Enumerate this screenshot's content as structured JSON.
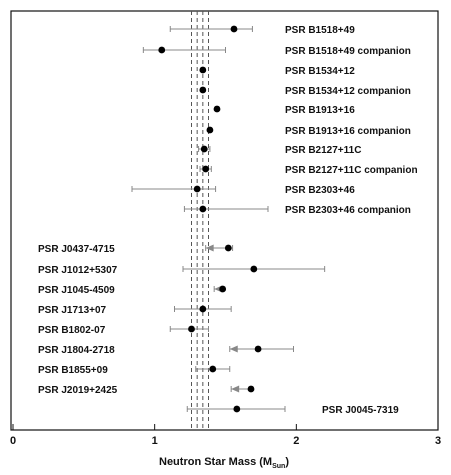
{
  "chart_data": {
    "type": "scatter",
    "title": "",
    "xlabel": "Neutron Star Mass (M",
    "xlabel_subscript": "Sun",
    "xlabel_close": ")",
    "xlim": [
      0,
      3
    ],
    "xticks": [
      "0",
      "1",
      "2",
      "3"
    ],
    "reference_lines": [
      1.26,
      1.3,
      1.34,
      1.38
    ],
    "points": [
      {
        "name": "PSR  B1518+49",
        "mass": 1.56,
        "err_low": 0.45,
        "err_high": 0.13,
        "arrow": false
      },
      {
        "name": "PSR  B1518+49 companion",
        "mass": 1.05,
        "err_low": 0.13,
        "err_high": 0.45,
        "arrow": false
      },
      {
        "name": "PSR  B1534+12",
        "mass": 1.34,
        "err_low": 0.01,
        "err_high": 0.01,
        "arrow": false
      },
      {
        "name": "PSR  B1534+12 companion",
        "mass": 1.34,
        "err_low": 0.01,
        "err_high": 0.01,
        "arrow": false
      },
      {
        "name": "PSR  B1913+16",
        "mass": 1.44,
        "err_low": 0.01,
        "err_high": 0.01,
        "arrow": false
      },
      {
        "name": "PSR  B1913+16 companion",
        "mass": 1.39,
        "err_low": 0.01,
        "err_high": 0.01,
        "arrow": false
      },
      {
        "name": "PSR  B2127+11C",
        "mass": 1.35,
        "err_low": 0.04,
        "err_high": 0.04,
        "arrow": false
      },
      {
        "name": "PSR  B2127+11C companion",
        "mass": 1.36,
        "err_low": 0.04,
        "err_high": 0.04,
        "arrow": false
      },
      {
        "name": "PSR  B2303+46",
        "mass": 1.3,
        "err_low": 0.46,
        "err_high": 0.13,
        "arrow": false
      },
      {
        "name": "PSR  B2303+46 companion",
        "mass": 1.34,
        "err_low": 0.13,
        "err_high": 0.46,
        "arrow": false
      },
      {
        "name": "PSR  J0437-4715",
        "mass": 1.52,
        "err_low": 0.16,
        "err_high": 0.03,
        "arrow": true
      },
      {
        "name": "PSR  J1012+5307",
        "mass": 1.7,
        "err_low": 0.5,
        "err_high": 0.5,
        "arrow": false
      },
      {
        "name": "PSR  J1045-4509",
        "mass": 1.48,
        "err_low": 0.06,
        "err_high": 0.01,
        "arrow": true
      },
      {
        "name": "PSR  J1713+07",
        "mass": 1.34,
        "err_low": 0.2,
        "err_high": 0.2,
        "arrow": false
      },
      {
        "name": "PSR  B1802-07",
        "mass": 1.26,
        "err_low": 0.15,
        "err_high": 0.12,
        "arrow": false
      },
      {
        "name": "PSR  J1804-2718",
        "mass": 1.73,
        "err_low": 0.2,
        "err_high": 0.25,
        "arrow": true
      },
      {
        "name": "PSR  B1855+09",
        "mass": 1.41,
        "err_low": 0.12,
        "err_high": 0.12,
        "arrow": false
      },
      {
        "name": "PSR  J2019+2425",
        "mass": 1.68,
        "err_low": 0.14,
        "err_high": 0.01,
        "arrow": true
      },
      {
        "name": "PSR  J0045-7319",
        "mass": 1.58,
        "err_low": 0.35,
        "err_high": 0.34,
        "arrow": false
      }
    ]
  }
}
